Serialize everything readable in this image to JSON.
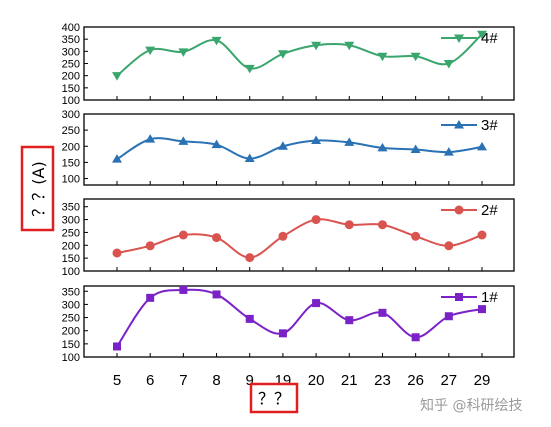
{
  "chart_data": {
    "type": "line",
    "ylabel": "？？(A)",
    "xlabel": "？？",
    "categories": [
      "5",
      "6",
      "7",
      "8",
      "9",
      "19",
      "20",
      "21",
      "23",
      "26",
      "27",
      "29"
    ],
    "panels": [
      {
        "series_name": "4#",
        "color": "#3aa66e",
        "marker": "triangle-down",
        "ylim": [
          100,
          400
        ],
        "yticks": [
          100,
          150,
          200,
          250,
          300,
          350,
          400
        ],
        "values": [
          200,
          305,
          298,
          345,
          230,
          290,
          325,
          325,
          280,
          280,
          250,
          370
        ]
      },
      {
        "series_name": "3#",
        "color": "#2a72b4",
        "marker": "triangle-up",
        "ylim": [
          80,
          300
        ],
        "yticks": [
          100,
          150,
          200,
          250,
          300
        ],
        "values": [
          160,
          222,
          215,
          205,
          162,
          200,
          218,
          212,
          195,
          190,
          182,
          198
        ]
      },
      {
        "series_name": "2#",
        "color": "#d9534f",
        "marker": "circle",
        "ylim": [
          100,
          380
        ],
        "yticks": [
          100,
          150,
          200,
          250,
          300,
          350
        ],
        "values": [
          170,
          198,
          240,
          230,
          152,
          235,
          300,
          280,
          280,
          235,
          198,
          240
        ]
      },
      {
        "series_name": "1#",
        "color": "#7a22c8",
        "marker": "square",
        "ylim": [
          100,
          370
        ],
        "yticks": [
          100,
          150,
          200,
          250,
          300,
          350
        ],
        "values": [
          140,
          325,
          355,
          338,
          245,
          190,
          305,
          240,
          268,
          175,
          255,
          282
        ]
      }
    ]
  },
  "watermark": "知乎 @科研绘技",
  "highlight_color": "#e02020"
}
